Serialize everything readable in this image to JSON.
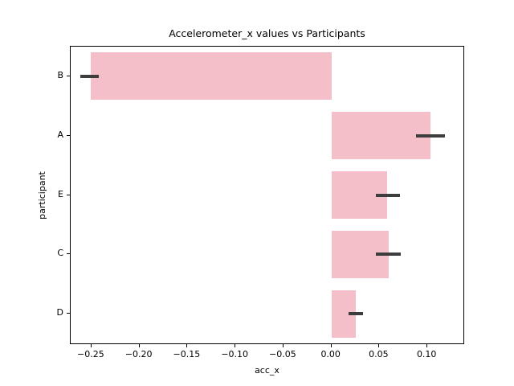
{
  "chart_data": {
    "type": "bar",
    "orientation": "horizontal",
    "title": "Accelerometer_x values vs Participants",
    "xlabel": "acc_x",
    "ylabel": "participant",
    "categories": [
      "B",
      "A",
      "E",
      "C",
      "D"
    ],
    "values": [
      -0.251,
      0.103,
      0.058,
      0.06,
      0.025
    ],
    "error_bars": [
      [
        -0.262,
        -0.242
      ],
      [
        0.088,
        0.118
      ],
      [
        0.046,
        0.071
      ],
      [
        0.046,
        0.072
      ],
      [
        0.018,
        0.033
      ]
    ],
    "xlim": [
      -0.2717,
      0.1375
    ],
    "xticks": [
      -0.25,
      -0.2,
      -0.15,
      -0.1,
      -0.05,
      0.0,
      0.05,
      0.1
    ],
    "xtick_labels": [
      "−0.25",
      "−0.20",
      "−0.15",
      "−0.10",
      "−0.05",
      "0.00",
      "0.05",
      "0.10"
    ],
    "grid": false,
    "legend": null,
    "bar_color": "#f5bfca",
    "error_color": "#3d3d3d",
    "axis_color": "#000000",
    "background_color": "#ffffff"
  }
}
